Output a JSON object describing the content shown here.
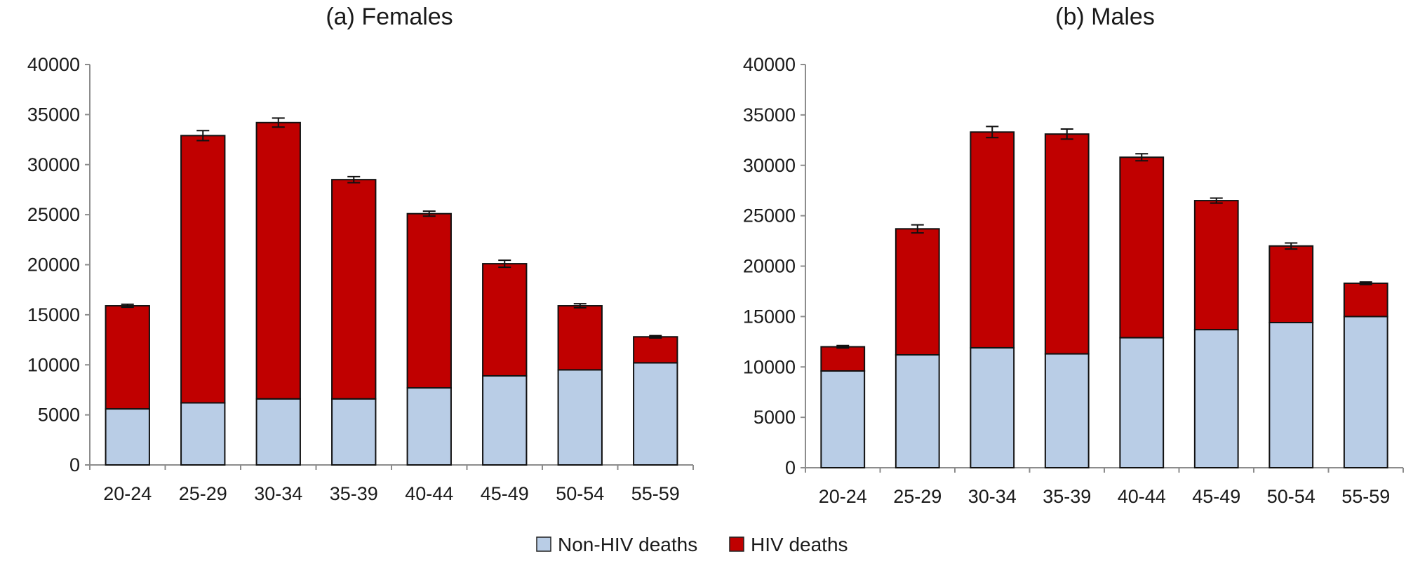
{
  "legend": {
    "items": [
      {
        "label": "Non-HIV deaths",
        "color": "#b9cde6"
      },
      {
        "label": "HIV deaths",
        "color": "#c00000"
      }
    ]
  },
  "chart_data": [
    {
      "type": "bar",
      "stacked": true,
      "title": "(a) Females",
      "categories": [
        "20-24",
        "25-29",
        "30-34",
        "35-39",
        "40-44",
        "45-49",
        "50-54",
        "55-59"
      ],
      "ylim": [
        0,
        40000
      ],
      "yticks": [
        0,
        5000,
        10000,
        15000,
        20000,
        25000,
        30000,
        35000,
        40000
      ],
      "grid": false,
      "legend_position": "bottom",
      "series": [
        {
          "name": "Non-HIV deaths",
          "color": "#b9cde6",
          "values": [
            5600,
            6200,
            6600,
            6600,
            7700,
            8900,
            9500,
            10200
          ]
        },
        {
          "name": "HIV deaths",
          "color": "#c00000",
          "values": [
            10300,
            26700,
            27600,
            21900,
            17400,
            11200,
            6400,
            2600
          ]
        }
      ],
      "totals": [
        15900,
        32900,
        34200,
        28500,
        25100,
        20100,
        15900,
        12800
      ],
      "error_bars": [
        150,
        500,
        450,
        300,
        250,
        350,
        200,
        120
      ]
    },
    {
      "type": "bar",
      "stacked": true,
      "title": "(b) Males",
      "categories": [
        "20-24",
        "25-29",
        "30-34",
        "35-39",
        "40-44",
        "45-49",
        "50-54",
        "55-59"
      ],
      "ylim": [
        0,
        40000
      ],
      "yticks": [
        0,
        5000,
        10000,
        15000,
        20000,
        25000,
        30000,
        35000,
        40000
      ],
      "grid": false,
      "legend_position": "bottom",
      "series": [
        {
          "name": "Non-HIV deaths",
          "color": "#b9cde6",
          "values": [
            9600,
            11200,
            11900,
            11300,
            12900,
            13700,
            14400,
            15000
          ]
        },
        {
          "name": "HIV deaths",
          "color": "#c00000",
          "values": [
            2400,
            12500,
            21400,
            21800,
            17900,
            12800,
            7600,
            3300
          ]
        }
      ],
      "totals": [
        12000,
        23700,
        33300,
        33100,
        30800,
        26500,
        22000,
        18300
      ],
      "error_bars": [
        120,
        400,
        550,
        500,
        350,
        250,
        300,
        130
      ]
    }
  ]
}
